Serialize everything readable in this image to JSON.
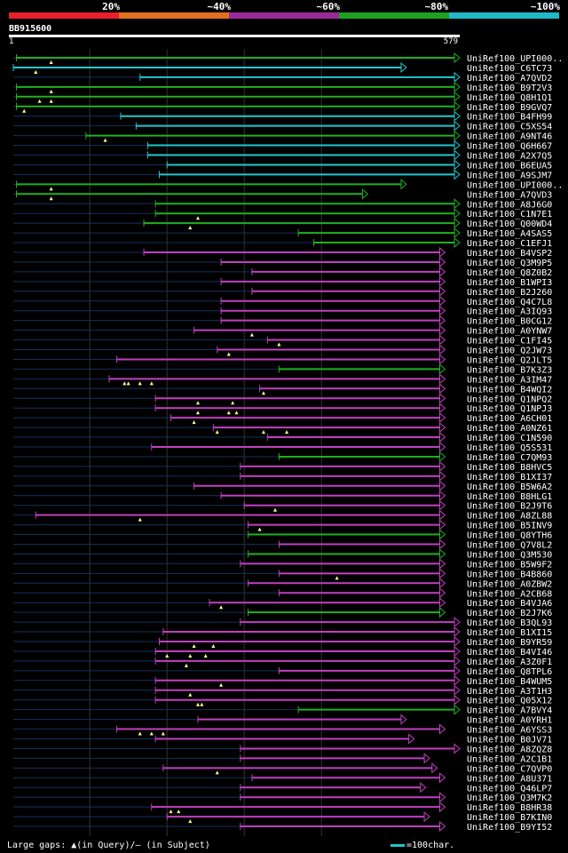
{
  "legend": {
    "colors": [
      "#e8202c",
      "#e07020",
      "#9a2a9a",
      "#20a020",
      "#20b8c8"
    ],
    "labels": [
      "20%",
      "~40%",
      "~60%",
      "~80%",
      "~100%"
    ]
  },
  "query": {
    "id": "BB915600",
    "start_label": "1",
    "end_label": "579",
    "length": 579
  },
  "footer": {
    "gaps_text": "Large gaps: ▲(in Query)/— (in Subject)",
    "scale_text": "=100char."
  },
  "chart_data": {
    "type": "alignment",
    "x_range": [
      1,
      579
    ],
    "grid_x": [
      100,
      200,
      300,
      400
    ],
    "identity_colors": {
      "magenta": "#c040c0",
      "green": "#20b020",
      "cyan": "#20c8d0"
    },
    "hits": [
      {
        "name": "UniRef100_UPI000..",
        "start": 5,
        "end": 579,
        "color": "green",
        "markers": [
          50
        ]
      },
      {
        "name": "UniRef100_C6TC73",
        "start": 1,
        "end": 510,
        "color": "cyan",
        "markers": [
          30
        ]
      },
      {
        "name": "UniRef100_A7QVD2",
        "start": 165,
        "end": 579,
        "color": "cyan",
        "markers": []
      },
      {
        "name": "UniRef100_B9T2V3",
        "start": 5,
        "end": 579,
        "color": "green",
        "markers": [
          50
        ]
      },
      {
        "name": "UniRef100_Q8H1Q1",
        "start": 5,
        "end": 579,
        "color": "green",
        "markers": [
          35,
          50
        ]
      },
      {
        "name": "UniRef100_B9GVQ7",
        "start": 5,
        "end": 579,
        "color": "green",
        "markers": [
          15
        ]
      },
      {
        "name": "UniRef100_B4FH99",
        "start": 140,
        "end": 579,
        "color": "cyan",
        "markers": []
      },
      {
        "name": "UniRef100_C5XS54",
        "start": 160,
        "end": 579,
        "color": "cyan",
        "markers": []
      },
      {
        "name": "UniRef100_A9NT46",
        "start": 95,
        "end": 579,
        "color": "green",
        "markers": [
          120
        ]
      },
      {
        "name": "UniRef100_Q6H667",
        "start": 175,
        "end": 579,
        "color": "cyan",
        "markers": []
      },
      {
        "name": "UniRef100_A2X7Q5",
        "start": 175,
        "end": 579,
        "color": "cyan",
        "markers": []
      },
      {
        "name": "UniRef100_B6EUA5",
        "start": 200,
        "end": 579,
        "color": "cyan",
        "markers": []
      },
      {
        "name": "UniRef100_A9SJM7",
        "start": 190,
        "end": 579,
        "color": "cyan",
        "markers": []
      },
      {
        "name": "UniRef100_UPI000..",
        "start": 5,
        "end": 510,
        "color": "green",
        "markers": [
          50
        ]
      },
      {
        "name": "UniRef100_A7QVD3",
        "start": 5,
        "end": 460,
        "color": "green",
        "markers": [
          50
        ]
      },
      {
        "name": "UniRef100_A8J6G0",
        "start": 185,
        "end": 579,
        "color": "green",
        "markers": []
      },
      {
        "name": "UniRef100_C1N7E1",
        "start": 185,
        "end": 579,
        "color": "green",
        "markers": [
          240
        ]
      },
      {
        "name": "UniRef100_Q00WD4",
        "start": 170,
        "end": 579,
        "color": "green",
        "markers": [
          230
        ]
      },
      {
        "name": "UniRef100_A4SAS5",
        "start": 370,
        "end": 579,
        "color": "green",
        "markers": []
      },
      {
        "name": "UniRef100_C1EFJ1",
        "start": 390,
        "end": 579,
        "color": "green",
        "markers": []
      },
      {
        "name": "UniRef100_B4VSP2",
        "start": 170,
        "end": 560,
        "color": "magenta",
        "markers": []
      },
      {
        "name": "UniRef100_Q3M9P5",
        "start": 270,
        "end": 560,
        "color": "magenta",
        "markers": []
      },
      {
        "name": "UniRef100_Q8Z0B2",
        "start": 310,
        "end": 560,
        "color": "magenta",
        "markers": []
      },
      {
        "name": "UniRef100_B1WPI3",
        "start": 270,
        "end": 560,
        "color": "magenta",
        "markers": []
      },
      {
        "name": "UniRef100_B2J260",
        "start": 310,
        "end": 560,
        "color": "magenta",
        "markers": []
      },
      {
        "name": "UniRef100_Q4C7L8",
        "start": 270,
        "end": 560,
        "color": "magenta",
        "markers": []
      },
      {
        "name": "UniRef100_A3IQ93",
        "start": 270,
        "end": 560,
        "color": "magenta",
        "markers": []
      },
      {
        "name": "UniRef100_B0CG12",
        "start": 270,
        "end": 560,
        "color": "magenta",
        "markers": []
      },
      {
        "name": "UniRef100_A0YNW7",
        "start": 235,
        "end": 560,
        "color": "magenta",
        "markers": [
          310
        ]
      },
      {
        "name": "UniRef100_C1FI45",
        "start": 330,
        "end": 560,
        "color": "magenta",
        "markers": [
          345
        ]
      },
      {
        "name": "UniRef100_Q2JW73",
        "start": 265,
        "end": 560,
        "color": "magenta",
        "markers": [
          280
        ]
      },
      {
        "name": "UniRef100_Q2JLT5",
        "start": 135,
        "end": 560,
        "color": "magenta",
        "markers": []
      },
      {
        "name": "UniRef100_B7K3Z3",
        "start": 345,
        "end": 560,
        "color": "green",
        "markers": []
      },
      {
        "name": "UniRef100_A3IM47",
        "start": 125,
        "end": 560,
        "color": "magenta",
        "markers": [
          145,
          150,
          165,
          180
        ]
      },
      {
        "name": "UniRef100_B4WQI2",
        "start": 320,
        "end": 560,
        "color": "magenta",
        "markers": [
          325
        ]
      },
      {
        "name": "UniRef100_Q1NPQ2",
        "start": 185,
        "end": 560,
        "color": "magenta",
        "markers": [
          240,
          285
        ]
      },
      {
        "name": "UniRef100_Q1NPJ3",
        "start": 185,
        "end": 560,
        "color": "magenta",
        "markers": [
          240,
          280,
          290
        ]
      },
      {
        "name": "UniRef100_A6CH01",
        "start": 205,
        "end": 560,
        "color": "magenta",
        "markers": [
          235
        ]
      },
      {
        "name": "UniRef100_A0NZ61",
        "start": 260,
        "end": 560,
        "color": "magenta",
        "markers": [
          265,
          325,
          355
        ]
      },
      {
        "name": "UniRef100_C1N590",
        "start": 330,
        "end": 560,
        "color": "magenta",
        "markers": []
      },
      {
        "name": "UniRef100_Q5S531",
        "start": 180,
        "end": 560,
        "color": "magenta",
        "markers": []
      },
      {
        "name": "UniRef100_C7QM93",
        "start": 345,
        "end": 560,
        "color": "green",
        "markers": []
      },
      {
        "name": "UniRef100_B8HVC5",
        "start": 295,
        "end": 560,
        "color": "magenta",
        "markers": []
      },
      {
        "name": "UniRef100_B1XI37",
        "start": 295,
        "end": 560,
        "color": "magenta",
        "markers": []
      },
      {
        "name": "UniRef100_B5W6A2",
        "start": 235,
        "end": 560,
        "color": "magenta",
        "markers": []
      },
      {
        "name": "UniRef100_B8HLG1",
        "start": 270,
        "end": 560,
        "color": "magenta",
        "markers": []
      },
      {
        "name": "UniRef100_B2J9T6",
        "start": 300,
        "end": 560,
        "color": "magenta",
        "markers": [
          340
        ]
      },
      {
        "name": "UniRef100_A8ZL88",
        "start": 30,
        "end": 560,
        "color": "magenta",
        "markers": [
          165
        ]
      },
      {
        "name": "UniRef100_B5INV9",
        "start": 305,
        "end": 560,
        "color": "magenta",
        "markers": [
          320
        ]
      },
      {
        "name": "UniRef100_Q8YTH6",
        "start": 305,
        "end": 560,
        "color": "green",
        "markers": []
      },
      {
        "name": "UniRef100_Q7V8L2",
        "start": 345,
        "end": 560,
        "color": "magenta",
        "markers": []
      },
      {
        "name": "UniRef100_Q3M530",
        "start": 305,
        "end": 560,
        "color": "green",
        "markers": []
      },
      {
        "name": "UniRef100_B5W9F2",
        "start": 295,
        "end": 560,
        "color": "magenta",
        "markers": []
      },
      {
        "name": "UniRef100_B4B860",
        "start": 345,
        "end": 560,
        "color": "magenta",
        "markers": [
          420
        ]
      },
      {
        "name": "UniRef100_A0ZBW2",
        "start": 305,
        "end": 560,
        "color": "magenta",
        "markers": []
      },
      {
        "name": "UniRef100_A2CB68",
        "start": 345,
        "end": 560,
        "color": "magenta",
        "markers": []
      },
      {
        "name": "UniRef100_B4VJA6",
        "start": 255,
        "end": 560,
        "color": "magenta",
        "markers": [
          270
        ]
      },
      {
        "name": "UniRef100_B2J7K6",
        "start": 305,
        "end": 560,
        "color": "green",
        "markers": []
      },
      {
        "name": "UniRef100_B3QL93",
        "start": 295,
        "end": 579,
        "color": "magenta",
        "markers": []
      },
      {
        "name": "UniRef100_B1XI15",
        "start": 195,
        "end": 579,
        "color": "magenta",
        "markers": []
      },
      {
        "name": "UniRef100_B9YR59",
        "start": 190,
        "end": 579,
        "color": "magenta",
        "markers": [
          235,
          260
        ]
      },
      {
        "name": "UniRef100_B4VI46",
        "start": 185,
        "end": 579,
        "color": "magenta",
        "markers": [
          200,
          230,
          250
        ]
      },
      {
        "name": "UniRef100_A3Z0F1",
        "start": 185,
        "end": 579,
        "color": "magenta",
        "markers": [
          225
        ]
      },
      {
        "name": "UniRef100_Q8TPL6",
        "start": 345,
        "end": 579,
        "color": "magenta",
        "markers": []
      },
      {
        "name": "UniRef100_B4WUM5",
        "start": 185,
        "end": 579,
        "color": "magenta",
        "markers": [
          270
        ]
      },
      {
        "name": "UniRef100_A3T1H3",
        "start": 185,
        "end": 579,
        "color": "magenta",
        "markers": [
          230
        ]
      },
      {
        "name": "UniRef100_Q05X12",
        "start": 185,
        "end": 579,
        "color": "magenta",
        "markers": [
          240,
          245
        ]
      },
      {
        "name": "UniRef100_A7BVY4",
        "start": 370,
        "end": 579,
        "color": "green",
        "markers": []
      },
      {
        "name": "UniRef100_A0YRH1",
        "start": 240,
        "end": 510,
        "color": "magenta",
        "markers": []
      },
      {
        "name": "UniRef100_A6YSS3",
        "start": 135,
        "end": 560,
        "color": "magenta",
        "markers": [
          165,
          180,
          195
        ]
      },
      {
        "name": "UniRef100_B0JV71",
        "start": 185,
        "end": 520,
        "color": "magenta",
        "markers": []
      },
      {
        "name": "UniRef100_A8ZQZ8",
        "start": 295,
        "end": 579,
        "color": "magenta",
        "markers": []
      },
      {
        "name": "UniRef100_A2C1B1",
        "start": 295,
        "end": 540,
        "color": "magenta",
        "markers": []
      },
      {
        "name": "UniRef100_C7QVP0",
        "start": 195,
        "end": 550,
        "color": "magenta",
        "markers": [
          265
        ]
      },
      {
        "name": "UniRef100_A8U371",
        "start": 310,
        "end": 560,
        "color": "magenta",
        "markers": []
      },
      {
        "name": "UniRef100_Q46LP7",
        "start": 295,
        "end": 535,
        "color": "magenta",
        "markers": []
      },
      {
        "name": "UniRef100_Q3M7K2",
        "start": 295,
        "end": 560,
        "color": "magenta",
        "markers": []
      },
      {
        "name": "UniRef100_B8HR38",
        "start": 180,
        "end": 560,
        "color": "magenta",
        "markers": [
          205,
          215
        ]
      },
      {
        "name": "UniRef100_B7KIN0",
        "start": 200,
        "end": 540,
        "color": "magenta",
        "markers": [
          230
        ]
      },
      {
        "name": "UniRef100_B9YI52",
        "start": 295,
        "end": 560,
        "color": "magenta",
        "markers": []
      }
    ]
  }
}
